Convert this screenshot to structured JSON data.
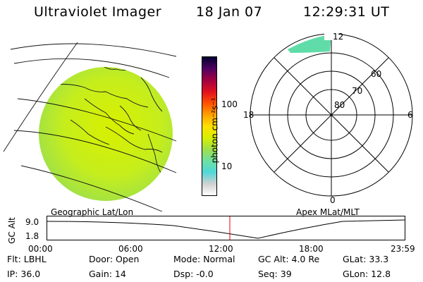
{
  "header": {
    "instrument": "Ultraviolet Imager",
    "date": "18 Jan 07",
    "time": "12:29:31 UT"
  },
  "colorbar": {
    "unit_label": "photon cm⁻²s⁻¹",
    "ticks": [
      "100",
      "10"
    ],
    "colors": [
      "#ffffff",
      "#d0d0d0",
      "#4fd8d8",
      "#6ee0a0",
      "#9ee04a",
      "#d8f000",
      "#ffe000",
      "#ffa000",
      "#ff5000",
      "#e01020",
      "#a00040",
      "#500060",
      "#000030"
    ]
  },
  "polar": {
    "labels": {
      "top": "12",
      "left": "18",
      "right": "6",
      "bottom": "0"
    },
    "rings": [
      "80",
      "70",
      "60"
    ]
  },
  "altitude_plot": {
    "left_label": "Geographic Lat/Lon",
    "right_label": "Apex MLat/MLT",
    "y_axis_title": "GC Alt",
    "y_ticks": [
      "9.0",
      "1.8"
    ],
    "x_ticks": [
      "00:00",
      "06:00",
      "12:00",
      "18:00",
      "23:59"
    ],
    "current_time_color": "#e00000"
  },
  "info": {
    "row1": [
      {
        "label": "Flt:",
        "value": "LBHL"
      },
      {
        "label": "Door:",
        "value": "Open"
      },
      {
        "label": "Mode:",
        "value": "Normal"
      },
      {
        "label": "GC Alt:",
        "value": "4.0 Re"
      },
      {
        "label": "GLat:",
        "value": "33.3"
      }
    ],
    "row2": [
      {
        "label": "IP:",
        "value": "36.0"
      },
      {
        "label": "Gain:",
        "value": "14"
      },
      {
        "label": "Dsp:",
        "value": "-0.0"
      },
      {
        "label": "Seq:",
        "value": "39"
      },
      {
        "label": "GLon:",
        "value": "12.8"
      }
    ]
  }
}
